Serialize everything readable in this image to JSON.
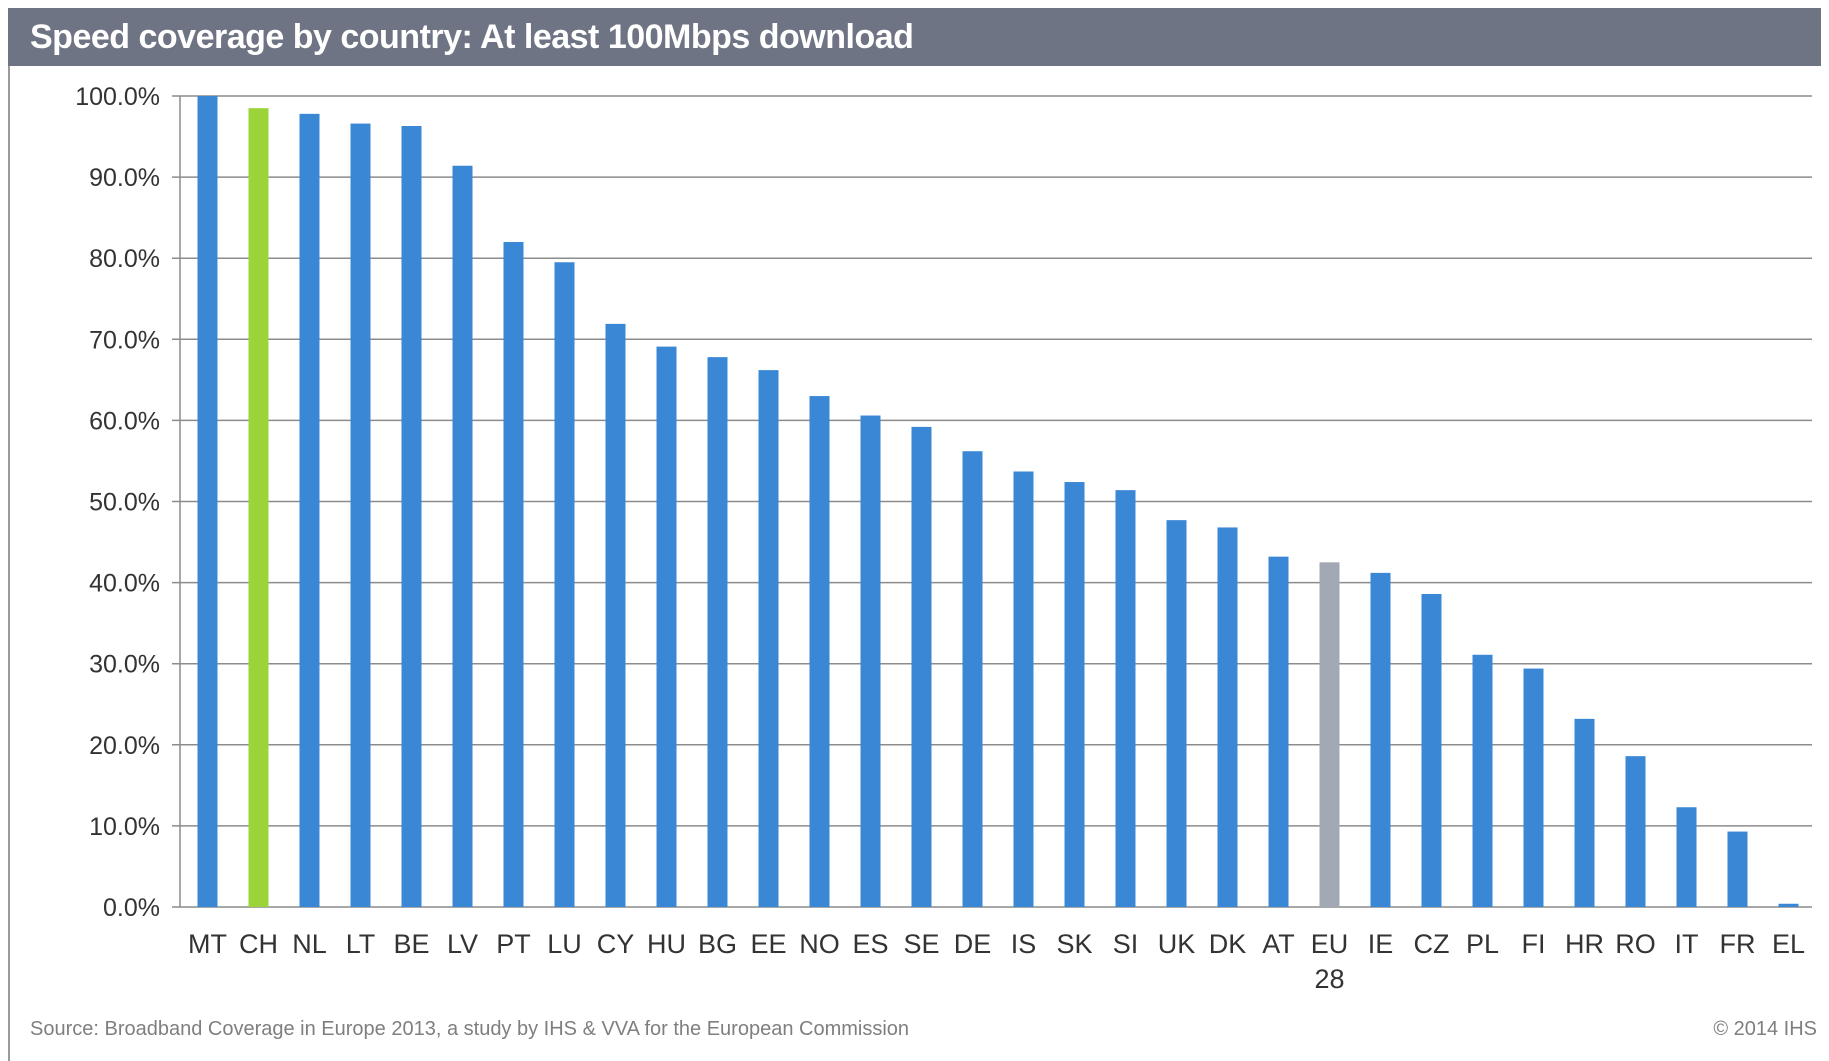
{
  "header": {
    "title": "Speed coverage by country: At least 100Mbps download"
  },
  "footer": {
    "source": "Source: Broadband Coverage in Europe 2013, a study by IHS & VVA for the European Commission",
    "copyright": "© 2014 IHS"
  },
  "colors": {
    "default": "#3a87d6",
    "highlight": "#9ad43a",
    "average": "#a3a8b5",
    "grid": "#8c8c8c"
  },
  "chart_data": {
    "type": "bar",
    "title": "Speed coverage by country: At least 100Mbps download",
    "xlabel": "",
    "ylabel": "",
    "ylim": [
      0,
      100
    ],
    "grid": true,
    "y_ticks": [
      "0.0%",
      "10.0%",
      "20.0%",
      "30.0%",
      "40.0%",
      "50.0%",
      "60.0%",
      "70.0%",
      "80.0%",
      "90.0%",
      "100.0%"
    ],
    "categories": [
      "MT",
      "CH",
      "NL",
      "LT",
      "BE",
      "LV",
      "PT",
      "LU",
      "CY",
      "HU",
      "BG",
      "EE",
      "NO",
      "ES",
      "SE",
      "DE",
      "IS",
      "SK",
      "SI",
      "UK",
      "DK",
      "AT",
      "EU 28",
      "IE",
      "CZ",
      "PL",
      "FI",
      "HR",
      "RO",
      "IT",
      "FR",
      "EL"
    ],
    "values": [
      100.0,
      98.5,
      97.8,
      96.6,
      96.3,
      91.4,
      82.0,
      79.5,
      71.9,
      69.1,
      67.8,
      66.2,
      63.0,
      60.6,
      59.2,
      56.2,
      53.7,
      52.4,
      51.4,
      47.7,
      46.8,
      43.2,
      42.5,
      41.2,
      38.6,
      31.1,
      29.4,
      23.2,
      18.6,
      12.3,
      9.3,
      0.4
    ],
    "highlight": {
      "CH": "highlight",
      "EU 28": "average"
    }
  }
}
